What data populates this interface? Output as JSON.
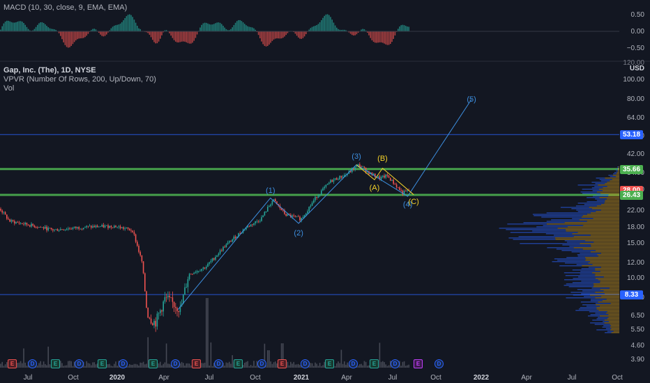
{
  "colors": {
    "background": "#131722",
    "bull": "#26a69a",
    "bear": "#ef5350",
    "green_line": "#4caf50",
    "blue_line": "#2962ff",
    "wave_blue": "#3d8fe0",
    "wave_yellow": "#f5d329",
    "vp_up": "#2962ff",
    "vp_down": "#d8a01e"
  },
  "legend": {
    "macd": "MACD (10, 30, close, 9, EMA, EMA)",
    "symbol": "Gap, Inc. (The), 1D, NYSE",
    "vpvr": "VPVR (Number Of Rows, 200, Up/Down, 70)",
    "vol": "Vol"
  },
  "macd_axis": [
    "0.50",
    "0.00",
    "−0.50"
  ],
  "price_axis": {
    "currency": "USD",
    "top_cut": "120.00",
    "ticks": [
      "100.00",
      "80.00",
      "64.00",
      "52.00",
      "42.00",
      "34.00",
      "28.00",
      "22.00",
      "18.00",
      "15.00",
      "12.00",
      "10.00",
      "8.00",
      "6.50",
      "5.50",
      "4.60",
      "3.90"
    ],
    "tick_values": [
      100,
      80,
      64,
      52,
      42,
      34,
      28,
      22,
      18,
      15,
      12,
      10,
      8,
      6.5,
      5.5,
      4.6,
      3.9
    ]
  },
  "x_axis": [
    "Jul",
    "Oct",
    "2020",
    "Apr",
    "Jul",
    "Oct",
    "2021",
    "Apr",
    "Jul",
    "Oct",
    "2022",
    "Apr",
    "Jul",
    "Oct"
  ],
  "x_axis_major": [
    false,
    false,
    true,
    false,
    false,
    false,
    true,
    false,
    false,
    false,
    true,
    false,
    false,
    false
  ],
  "price_tags": [
    {
      "label": "53.18",
      "value": 53.18,
      "bg": "#2962ff",
      "line": "#2962ff"
    },
    {
      "label": "35.66",
      "value": 35.66,
      "bg": "#4caf50",
      "line": "#4caf50"
    },
    {
      "label": "28.00",
      "value": 28.0,
      "bg": "#ef5350",
      "line": ""
    },
    {
      "label": "26.43",
      "value": 26.43,
      "bg": "#4caf50",
      "line": "#4caf50"
    },
    {
      "label": "8.33",
      "value": 8.33,
      "bg": "#2962ff",
      "line": "#2962ff"
    }
  ],
  "events": [
    "E",
    "D",
    "E",
    "D",
    "E",
    "D",
    "E",
    "D",
    "E",
    "D",
    "E",
    "D",
    "E",
    "D",
    "E",
    "D",
    "E",
    "D",
    "E",
    "D"
  ],
  "event_types": [
    "e",
    "d",
    "ee",
    "d",
    "ee",
    "d",
    "ee",
    "d",
    "e",
    "d",
    "ee",
    "d",
    "e",
    "d",
    "ee",
    "d",
    "ee",
    "d",
    "ep",
    "d"
  ],
  "waves": [
    {
      "label": "(1)",
      "color": "blue"
    },
    {
      "label": "(2)",
      "color": "blue"
    },
    {
      "label": "(3)",
      "color": "blue"
    },
    {
      "label": "(4)",
      "color": "blue"
    },
    {
      "label": "(5)",
      "color": "blue"
    },
    {
      "label": "(A)",
      "color": "yellow"
    },
    {
      "label": "(B)",
      "color": "yellow"
    },
    {
      "label": "(C)",
      "color": "yellow"
    }
  ],
  "chart_data": {
    "type": "candlestick",
    "title": "Gap, Inc. (The), 1D, NYSE",
    "ylabel": "USD",
    "y_scale": "log",
    "x_range": [
      "2019-06",
      "2022-10"
    ],
    "close_path": [
      {
        "x": "2019-06-01",
        "y": 22.5
      },
      {
        "x": "2019-06-20",
        "y": 19.5
      },
      {
        "x": "2019-08-01",
        "y": 18.6
      },
      {
        "x": "2019-09-15",
        "y": 17.6
      },
      {
        "x": "2019-11-15",
        "y": 18.2
      },
      {
        "x": "2020-01-15",
        "y": 18.4
      },
      {
        "x": "2020-02-20",
        "y": 17.5
      },
      {
        "x": "2020-03-10",
        "y": 12.0
      },
      {
        "x": "2020-03-20",
        "y": 6.5
      },
      {
        "x": "2020-04-05",
        "y": 6.0
      },
      {
        "x": "2020-04-25",
        "y": 8.0
      },
      {
        "x": "2020-05-10",
        "y": 7.5
      },
      {
        "x": "2020-05-25",
        "y": 7.0
      },
      {
        "x": "2020-06-10",
        "y": 10.5
      },
      {
        "x": "2020-07-15",
        "y": 11.5
      },
      {
        "x": "2020-08-20",
        "y": 14.5
      },
      {
        "x": "2020-10-01",
        "y": 18.0
      },
      {
        "x": "2020-11-01",
        "y": 20.0
      },
      {
        "x": "2020-11-25",
        "y": 25.0
      },
      {
        "x": "2020-12-20",
        "y": 21.0
      },
      {
        "x": "2021-01-20",
        "y": 20.0
      },
      {
        "x": "2021-02-20",
        "y": 26.0
      },
      {
        "x": "2021-03-20",
        "y": 31.0
      },
      {
        "x": "2021-04-20",
        "y": 33.5
      },
      {
        "x": "2021-05-15",
        "y": 37.5
      },
      {
        "x": "2021-06-05",
        "y": 34.0
      },
      {
        "x": "2021-06-25",
        "y": 32.0
      },
      {
        "x": "2021-07-10",
        "y": 33.0
      },
      {
        "x": "2021-07-25",
        "y": 30.0
      },
      {
        "x": "2021-08-10",
        "y": 27.0
      },
      {
        "x": "2021-08-25",
        "y": 28.0
      }
    ],
    "macd_histogram_range": [
      -0.6,
      0.6
    ],
    "horizontal_levels": [
      53.18,
      35.66,
      26.43,
      8.33
    ],
    "elliott_waves": {
      "impulse": [
        {
          "label": "(1)",
          "x": "2020-11-20",
          "y": 25.5
        },
        {
          "label": "(2)",
          "x": "2021-01-15",
          "y": 19.0
        },
        {
          "label": "(3)",
          "x": "2021-05-10",
          "y": 37.5
        },
        {
          "label": "(4)",
          "x": "2021-08-20",
          "y": 26.0
        },
        {
          "label": "(5)",
          "x": "2021-12-25",
          "y": 80.0
        }
      ],
      "correction": [
        {
          "label": "(A)",
          "x": "2021-06-15",
          "y": 31.5
        },
        {
          "label": "(B)",
          "x": "2021-07-01",
          "y": 36.0
        },
        {
          "label": "(C)",
          "x": "2021-09-01",
          "y": 26.5
        }
      ]
    },
    "volume_profile": "VPVR (Number Of Rows, 200, Up/Down, 70)",
    "grid": false
  }
}
